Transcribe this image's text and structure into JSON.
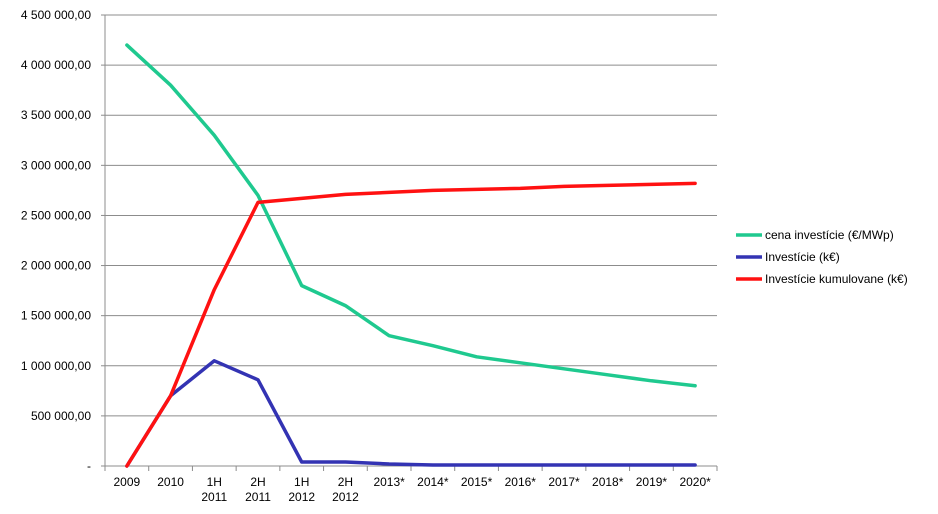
{
  "chart_data": {
    "type": "line",
    "categories": [
      "2009",
      "2010",
      "1H 2011",
      "2H 2011",
      "1H 2012",
      "2H 2012",
      "2013*",
      "2014*",
      "2015*",
      "2016*",
      "2017*",
      "2018*",
      "2019*",
      "2020*"
    ],
    "category_lines": [
      [
        "2009"
      ],
      [
        "2010"
      ],
      [
        "1H",
        "2011"
      ],
      [
        "2H",
        "2011"
      ],
      [
        "1H",
        "2012"
      ],
      [
        "2H",
        "2012"
      ],
      [
        "2013*"
      ],
      [
        "2014*"
      ],
      [
        "2015*"
      ],
      [
        "2016*"
      ],
      [
        "2017*"
      ],
      [
        "2018*"
      ],
      [
        "2019*"
      ],
      [
        "2020*"
      ]
    ],
    "ylim": [
      0,
      4500000
    ],
    "yticks": [
      0,
      500000,
      1000000,
      1500000,
      2000000,
      2500000,
      3000000,
      3500000,
      4000000,
      4500000
    ],
    "ytick_labels": [
      "-",
      "500 000,00",
      "1 000 000,00",
      "1 500 000,00",
      "2 000 000,00",
      "2 500 000,00",
      "3 000 000,00",
      "3 500 000,00",
      "4 000 000,00",
      "4 500 000,00"
    ],
    "grid": true,
    "legend_position": "right",
    "series": [
      {
        "name": "cena investície (€/MWp)",
        "color": "#1fc98f",
        "values": [
          4200000,
          3800000,
          3300000,
          2700000,
          1800000,
          1600000,
          1300000,
          1200000,
          1090000,
          1030000,
          970000,
          910000,
          850000,
          800000
        ]
      },
      {
        "name": "Investície  (k€)",
        "color": "#3333b3",
        "values": [
          0,
          700000,
          1050000,
          860000,
          40000,
          40000,
          20000,
          10000,
          10000,
          10000,
          10000,
          10000,
          10000,
          10000
        ]
      },
      {
        "name": "Investície  kumulovane  (k€)",
        "color": "#ff1111",
        "values": [
          0,
          700000,
          1760000,
          2630000,
          2670000,
          2710000,
          2730000,
          2750000,
          2760000,
          2770000,
          2790000,
          2800000,
          2810000,
          2820000
        ]
      }
    ]
  }
}
